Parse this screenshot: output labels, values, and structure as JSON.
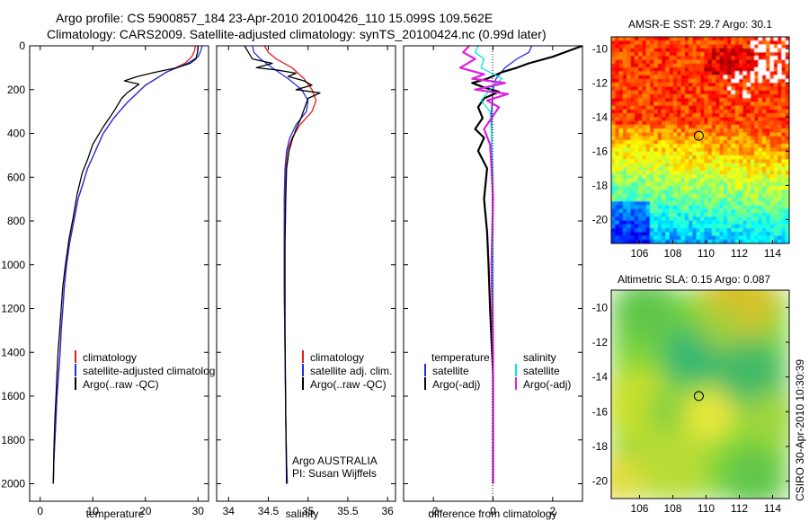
{
  "header": {
    "line1": "Argo profile: CS 5900857_184 23-Apr-2010 20100426_110 15.099S 109.562E",
    "line2": "Climatology: CARS2009. Satellite-adjusted climatology: synTS_20100424.nc (0.99d later)"
  },
  "side_label": "CSIRO 30-Apr-2010 10:30:39",
  "chart_data": [
    {
      "type": "line",
      "id": "temperature",
      "xlabel": "temperature",
      "ylabel": "",
      "xlim": [
        -2,
        32
      ],
      "ylim": [
        0,
        2080
      ],
      "y_inverted": true,
      "xticks": [
        0,
        10,
        20,
        30
      ],
      "yticks": [
        0,
        200,
        400,
        600,
        800,
        1000,
        1200,
        1400,
        1600,
        1800,
        2000
      ],
      "legend": {
        "position": "bottom-right",
        "entries": [
          {
            "label": "climatology",
            "color": "#e02020"
          },
          {
            "label": "satellite-adjusted climatolog",
            "color": "#1f2fe6"
          },
          {
            "label": "Argo(..raw -QC)",
            "color": "#000000"
          }
        ]
      },
      "series": [
        {
          "name": "climatology",
          "color": "#e02020",
          "width": 1.3,
          "x": [
            29.5,
            29.3,
            28.8,
            27.5,
            24.0,
            20.0,
            16.5,
            14.0,
            12.0,
            10.5,
            9.0,
            8.0,
            7.2,
            6.4,
            5.6,
            5.0,
            4.6,
            4.3,
            4.0,
            3.8,
            3.5,
            3.2,
            3.0,
            2.8,
            2.6,
            2.5
          ],
          "y": [
            0,
            25,
            50,
            80,
            120,
            180,
            260,
            330,
            400,
            480,
            560,
            640,
            700,
            800,
            900,
            1000,
            1100,
            1200,
            1300,
            1400,
            1500,
            1600,
            1700,
            1800,
            1900,
            2000
          ]
        },
        {
          "name": "satellite-adjusted climatology",
          "color": "#1f2fe6",
          "width": 1.3,
          "x": [
            30.8,
            30.5,
            30.0,
            28.0,
            24.0,
            20.0,
            16.5,
            14.0,
            12.0,
            10.5,
            9.0,
            8.0,
            7.2,
            6.4,
            5.6,
            5.0,
            4.6,
            4.3,
            4.0,
            3.8,
            3.5,
            3.2,
            3.0,
            2.8,
            2.6,
            2.5
          ],
          "y": [
            0,
            25,
            50,
            80,
            120,
            180,
            260,
            330,
            400,
            480,
            560,
            640,
            700,
            800,
            900,
            1000,
            1100,
            1200,
            1300,
            1400,
            1500,
            1600,
            1700,
            1800,
            1900,
            2000
          ]
        },
        {
          "name": "Argo(..raw -QC)",
          "color": "#000000",
          "width": 1.3,
          "x": [
            30.0,
            29.9,
            29.6,
            28.5,
            26.0,
            22.0,
            18.5,
            16.0,
            18.8,
            16.5,
            15.5,
            14.0,
            12.0,
            10.0,
            9.0,
            8.0,
            7.0,
            6.3,
            5.5,
            4.8,
            4.3,
            4.0,
            3.7,
            3.4,
            3.2,
            3.0,
            2.8,
            2.6,
            2.5
          ],
          "y": [
            0,
            30,
            60,
            80,
            100,
            120,
            140,
            160,
            175,
            215,
            240,
            300,
            370,
            450,
            520,
            580,
            680,
            780,
            880,
            1000,
            1100,
            1200,
            1300,
            1400,
            1500,
            1600,
            1700,
            1850,
            2000
          ]
        }
      ]
    },
    {
      "type": "line",
      "id": "salinity",
      "xlabel": "salinity",
      "ylabel": "",
      "xlim": [
        33.85,
        36.1
      ],
      "ylim": [
        0,
        2080
      ],
      "y_inverted": true,
      "xticks": [
        34,
        34.5,
        35,
        35.5,
        36
      ],
      "xticklabels": [
        "34",
        "34.5",
        "35",
        "35.5",
        "36"
      ],
      "legend": {
        "position": "bottom-right",
        "entries": [
          {
            "label": "climatology",
            "color": "#e02020"
          },
          {
            "label": "satellite adj. clim.",
            "color": "#1f2fe6"
          },
          {
            "label": "Argo(..raw -QC)",
            "color": "#000000"
          }
        ]
      },
      "annotations": [
        "Argo AUSTRALIA",
        "PI: Susan Wijffels"
      ],
      "series": [
        {
          "name": "climatology",
          "color": "#e02020",
          "width": 1.3,
          "x": [
            34.45,
            34.5,
            34.6,
            34.8,
            34.95,
            35.05,
            35.1,
            35.05,
            34.9,
            34.8,
            34.74,
            34.72,
            34.71,
            34.7,
            34.7,
            34.71,
            34.72,
            34.73,
            34.73
          ],
          "y": [
            0,
            30,
            60,
            100,
            150,
            200,
            250,
            300,
            360,
            420,
            480,
            560,
            700,
            900,
            1100,
            1400,
            1700,
            1900,
            2000
          ]
        },
        {
          "name": "satellite adj. clim.",
          "color": "#1f2fe6",
          "width": 1.3,
          "x": [
            34.3,
            34.32,
            34.4,
            34.55,
            34.75,
            34.92,
            35.0,
            34.98,
            34.85,
            34.77,
            34.73,
            34.71,
            34.7,
            34.7,
            34.7,
            34.71,
            34.72,
            34.73,
            34.74
          ],
          "y": [
            0,
            30,
            60,
            100,
            150,
            200,
            250,
            300,
            360,
            420,
            480,
            560,
            700,
            900,
            1100,
            1400,
            1700,
            1900,
            2000
          ]
        },
        {
          "name": "Argo(..raw -QC)",
          "color": "#000000",
          "width": 1.3,
          "x": [
            34.2,
            34.25,
            34.3,
            34.55,
            34.35,
            34.6,
            34.85,
            34.75,
            34.95,
            35.05,
            34.85,
            35.15,
            35.0,
            34.95,
            34.9,
            34.85,
            34.8,
            34.76,
            34.73,
            34.72,
            34.71,
            34.71,
            34.72,
            34.73
          ],
          "y": [
            0,
            30,
            60,
            80,
            100,
            110,
            125,
            140,
            160,
            180,
            200,
            215,
            240,
            290,
            340,
            380,
            430,
            480,
            560,
            700,
            900,
            1300,
            1700,
            2000
          ]
        }
      ]
    },
    {
      "type": "line",
      "id": "difference",
      "xlabel": "difference from climatology",
      "ylabel": "",
      "xlim": [
        -3,
        3
      ],
      "ylim": [
        0,
        2080
      ],
      "y_inverted": true,
      "xticks": [
        -2,
        0,
        2
      ],
      "legend": {
        "position": "bottom",
        "entries": [
          {
            "label": "temperature",
            "color": "none"
          },
          {
            "label": "satellite",
            "color": "#1f2fe6"
          },
          {
            "label": "Argo(-adj)",
            "color": "#000000"
          },
          {
            "label": "salinity",
            "color": "none"
          },
          {
            "label": "satellite",
            "color": "#00e6e6"
          },
          {
            "label": "Argo(-adj)",
            "color": "#e020e0"
          }
        ]
      },
      "series": [
        {
          "name": "temperature satellite",
          "color": "#1f2fe6",
          "width": 1.3,
          "x": [
            1.3,
            1.2,
            0.8,
            0.4,
            0.1,
            0.0,
            -0.05,
            -0.05,
            -0.03,
            -0.02,
            0.0,
            0.0,
            0.0,
            0.0
          ],
          "y": [
            0,
            30,
            60,
            100,
            150,
            200,
            300,
            400,
            500,
            700,
            1000,
            1400,
            1800,
            2000
          ]
        },
        {
          "name": "temperature Argo(-adj)",
          "color": "#000000",
          "width": 2.2,
          "x": [
            3.0,
            2.6,
            2.0,
            1.2,
            0.8,
            0.3,
            -0.2,
            -0.7,
            -0.3,
            0.2,
            -0.3,
            -0.5,
            -0.35,
            -0.6,
            -0.3,
            -0.5,
            -0.2,
            -0.3,
            -0.2,
            -0.15,
            -0.1,
            0.0,
            0.0,
            0.0
          ],
          "y": [
            0,
            20,
            50,
            80,
            100,
            120,
            150,
            170,
            190,
            210,
            240,
            280,
            330,
            380,
            420,
            480,
            560,
            700,
            850,
            1000,
            1200,
            1500,
            1800,
            2000
          ]
        },
        {
          "name": "salinity satellite",
          "color": "#00e6e6",
          "width": 1.3,
          "x": [
            -0.5,
            -0.6,
            -0.3,
            -0.4,
            0.3,
            -0.1,
            -0.4,
            -0.1,
            -0.05,
            0.0,
            0.0,
            0.0,
            0.0
          ],
          "y": [
            0,
            30,
            60,
            100,
            150,
            200,
            250,
            300,
            400,
            600,
            1000,
            1500,
            2000
          ]
        },
        {
          "name": "salinity Argo(-adj)",
          "color": "#e020e0",
          "width": 2.2,
          "x": [
            -0.8,
            -1.0,
            -0.6,
            -1.1,
            -0.3,
            -0.7,
            0.4,
            -0.6,
            0.5,
            -0.2,
            0.2,
            0.0,
            -0.3,
            -0.1,
            -0.05,
            0.0,
            -0.05,
            0.0,
            0.0,
            0.0
          ],
          "y": [
            0,
            30,
            60,
            100,
            130,
            150,
            170,
            200,
            220,
            250,
            280,
            320,
            380,
            450,
            560,
            700,
            1000,
            1400,
            1800,
            2000
          ]
        }
      ]
    },
    {
      "type": "heatmap",
      "id": "sst-map",
      "title": "AMSR-E SST: 29.7  Argo: 30.1",
      "xlim": [
        104.3,
        115
      ],
      "ylim": [
        -21.4,
        -9.3
      ],
      "xticks": [
        106,
        108,
        110,
        112,
        114
      ],
      "yticks": [
        -10,
        -12,
        -14,
        -16,
        -18,
        -20
      ],
      "marker": {
        "lon": 109.562,
        "lat": -15.099
      }
    },
    {
      "type": "heatmap",
      "id": "sla-map",
      "title": "Altimetric SLA: 0.15  Argo: 0.087",
      "xlim": [
        104.3,
        115
      ],
      "ylim": [
        -21.0,
        -9.0
      ],
      "xticks": [
        106,
        108,
        110,
        112,
        114
      ],
      "yticks": [
        -10,
        -12,
        -14,
        -16,
        -18,
        -20
      ],
      "marker": {
        "lon": 109.562,
        "lat": -15.099
      }
    }
  ]
}
